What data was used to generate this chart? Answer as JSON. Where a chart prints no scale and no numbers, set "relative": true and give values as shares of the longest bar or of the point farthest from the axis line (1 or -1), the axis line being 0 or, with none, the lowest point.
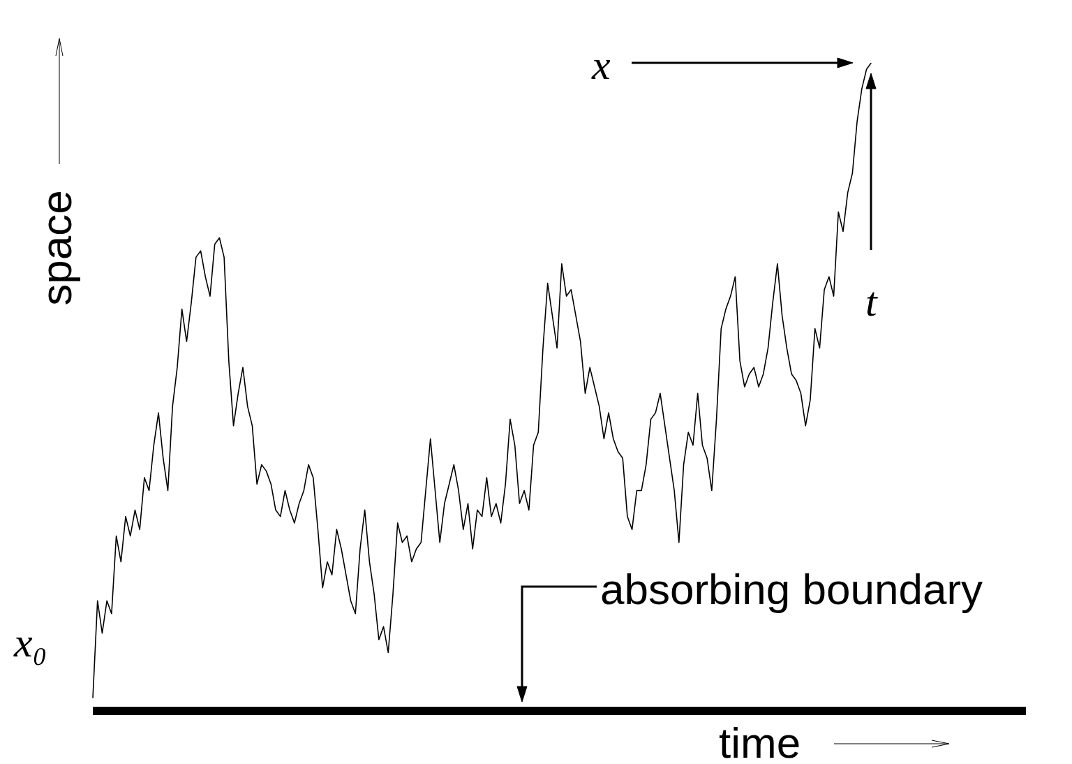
{
  "chart_data": {
    "type": "line",
    "relative": true,
    "xlabel": "time",
    "ylabel": "space",
    "marker": "none",
    "categories": [
      null,
      null,
      null,
      null,
      null,
      null,
      null,
      null,
      null,
      null,
      null,
      null,
      null,
      null,
      null,
      null,
      null,
      null,
      null,
      null,
      null,
      null,
      null,
      null,
      null,
      null,
      null,
      null,
      null,
      null,
      null,
      null,
      null,
      null,
      null,
      null,
      null,
      null,
      null,
      null,
      null,
      null,
      null,
      null,
      null,
      null,
      null,
      null,
      null,
      null,
      null,
      null,
      null,
      null,
      null,
      null,
      null,
      null,
      null,
      null,
      null,
      null,
      null,
      null,
      null,
      null,
      null,
      null,
      null,
      null,
      null,
      null,
      null,
      null,
      null,
      null,
      null,
      null,
      null,
      null,
      null,
      null,
      null,
      null,
      null,
      null,
      null,
      null,
      null,
      null,
      null,
      null,
      null,
      null,
      null,
      null,
      null,
      null,
      null,
      null,
      null,
      null,
      null,
      null,
      null,
      null,
      null,
      null,
      null,
      null,
      null,
      null,
      null,
      null,
      null,
      null,
      null,
      null,
      null,
      null,
      null,
      null,
      null,
      null,
      null,
      null,
      null,
      null,
      null,
      null,
      null,
      null,
      null,
      null,
      null,
      null,
      null,
      null,
      null,
      null,
      null,
      null,
      null,
      null,
      null,
      null,
      null,
      null,
      null,
      null,
      null,
      null,
      null,
      null,
      null,
      null,
      null,
      null,
      null,
      null,
      null,
      null,
      null,
      null,
      null,
      null,
      null,
      null,
      null,
      null,
      null,
      null,
      null,
      null,
      null,
      null,
      null,
      null,
      null,
      null,
      null,
      null,
      null,
      null,
      null,
      null,
      null,
      null,
      null,
      null,
      null,
      null,
      null,
      null,
      null,
      null,
      null,
      null,
      null,
      null
    ],
    "series": [
      {
        "color": "#000000",
        "values": [
          0.02,
          0.17,
          0.12,
          0.17,
          0.15,
          0.27,
          0.23,
          0.3,
          0.27,
          0.31,
          0.28,
          0.36,
          0.34,
          0.41,
          0.46,
          0.39,
          0.34,
          0.47,
          0.53,
          0.62,
          0.57,
          0.63,
          0.7,
          0.71,
          0.67,
          0.64,
          0.72,
          0.73,
          0.7,
          0.54,
          0.44,
          0.49,
          0.53,
          0.47,
          0.44,
          0.35,
          0.38,
          0.37,
          0.35,
          0.31,
          0.3,
          0.34,
          0.31,
          0.29,
          0.32,
          0.34,
          0.38,
          0.36,
          0.28,
          0.19,
          0.23,
          0.21,
          0.28,
          0.25,
          0.21,
          0.17,
          0.15,
          0.25,
          0.31,
          0.23,
          0.18,
          0.11,
          0.13,
          0.09,
          0.18,
          0.29,
          0.26,
          0.27,
          0.23,
          0.25,
          0.26,
          0.34,
          0.42,
          0.34,
          0.26,
          0.32,
          0.35,
          0.38,
          0.34,
          0.28,
          0.32,
          0.25,
          0.31,
          0.3,
          0.36,
          0.3,
          0.32,
          0.29,
          0.35,
          0.45,
          0.41,
          0.32,
          0.34,
          0.31,
          0.41,
          0.43,
          0.56,
          0.66,
          0.61,
          0.56,
          0.69,
          0.64,
          0.65,
          0.61,
          0.57,
          0.49,
          0.53,
          0.5,
          0.47,
          0.42,
          0.46,
          0.42,
          0.4,
          0.39,
          0.3,
          0.28,
          0.34,
          0.34,
          0.38,
          0.45,
          0.46,
          0.49,
          0.44,
          0.39,
          0.34,
          0.26,
          0.38,
          0.43,
          0.41,
          0.49,
          0.41,
          0.39,
          0.34,
          0.45,
          0.59,
          0.62,
          0.64,
          0.67,
          0.54,
          0.5,
          0.52,
          0.53,
          0.5,
          0.52,
          0.56,
          0.63,
          0.69,
          0.61,
          0.56,
          0.52,
          0.51,
          0.49,
          0.44,
          0.48,
          0.59,
          0.56,
          0.65,
          0.67,
          0.64,
          0.77,
          0.74,
          0.8,
          0.83,
          0.91,
          0.96,
          0.99,
          1,
          null,
          null,
          null,
          null,
          null,
          null,
          null,
          null,
          null,
          null,
          null,
          null,
          null,
          null,
          null,
          null,
          null,
          null,
          null,
          null,
          null,
          null,
          null,
          null,
          null,
          null,
          null,
          null,
          null,
          null,
          null,
          null,
          null
        ]
      }
    ],
    "ref_lines": [
      {
        "axis": "y",
        "value": 0,
        "label": "absorbing boundary",
        "color": "#000000"
      }
    ],
    "annotations": [
      "x",
      "t",
      "x₀"
    ]
  }
}
